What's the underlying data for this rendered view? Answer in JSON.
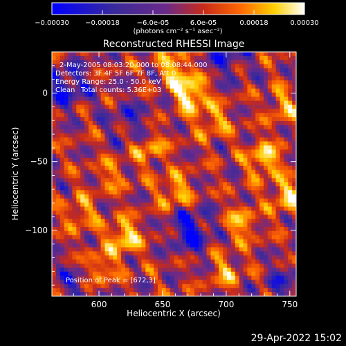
{
  "chart_data": {
    "type": "heatmap",
    "title": "Reconstructed RHESSI Image",
    "xlabel": "Heliocentric X (arcsec)",
    "ylabel": "Heliocentric Y (arcsec)",
    "xlim": [
      563,
      755
    ],
    "ylim": [
      -148,
      30
    ],
    "xticks": [
      {
        "value": 600,
        "label": "600"
      },
      {
        "value": 650,
        "label": "650"
      },
      {
        "value": 700,
        "label": "700"
      },
      {
        "value": 750,
        "label": "750"
      }
    ],
    "yticks": [
      {
        "value": 0,
        "label": "0"
      },
      {
        "value": -50,
        "label": "−50"
      },
      {
        "value": -100,
        "label": "−100"
      }
    ],
    "colorbar": {
      "range": [
        -0.0003,
        0.0003
      ],
      "ticks": [
        {
          "value": -0.0003,
          "label": "−0.00030"
        },
        {
          "value": -0.00018,
          "label": "−0.00018"
        },
        {
          "value": -6e-05,
          "label": "−6.0e-05"
        },
        {
          "value": 6e-05,
          "label": "6.0e-05"
        },
        {
          "value": 0.00018,
          "label": "0.00018"
        },
        {
          "value": 0.0003,
          "label": "0.00030"
        }
      ],
      "unit_label": "(photons cm⁻² s⁻¹ asec⁻²)"
    },
    "color_stops": [
      "#0000ff",
      "#3a2a9a",
      "#6a2a8a",
      "#c82a1a",
      "#ff6a00",
      "#ffd000",
      "#ffffff"
    ],
    "annotations": [
      "2-May-2005 08:03:20.000 to 08:08:44.000",
      "Detectors: 3F 4F 5F 6F 7F 8F, Att 0",
      "Energy Range: 25.0 - 50.0 keV",
      "Clean",
      "Total counts: 5.36E+03",
      "Position of Peak = [672,3]"
    ],
    "peak": {
      "x": 672,
      "y": 3
    },
    "bright_sources": [
      {
        "x": 672,
        "y": 0,
        "strength": 1.0
      },
      {
        "x": 660,
        "y": 18,
        "strength": 0.7
      },
      {
        "x": 730,
        "y": -48,
        "strength": 0.8
      },
      {
        "x": 748,
        "y": -75,
        "strength": 0.75
      },
      {
        "x": 620,
        "y": -105,
        "strength": 0.85
      },
      {
        "x": 600,
        "y": -128,
        "strength": 0.6
      },
      {
        "x": 660,
        "y": -72,
        "strength": 0.65
      },
      {
        "x": 712,
        "y": -95,
        "strength": 0.6
      },
      {
        "x": 640,
        "y": -40,
        "strength": 0.55
      },
      {
        "x": 690,
        "y": -20,
        "strength": 0.55
      },
      {
        "x": 585,
        "y": -88,
        "strength": 0.5
      },
      {
        "x": 700,
        "y": -130,
        "strength": 0.5
      },
      {
        "x": 745,
        "y": -10,
        "strength": 0.5
      },
      {
        "x": 610,
        "y": -60,
        "strength": 0.4
      }
    ],
    "dark_sources": [
      {
        "x": 575,
        "y": 5,
        "strength": 0.8
      },
      {
        "x": 672,
        "y": -100,
        "strength": 0.9
      },
      {
        "x": 700,
        "y": 25,
        "strength": 0.6
      },
      {
        "x": 625,
        "y": -20,
        "strength": 0.5
      },
      {
        "x": 580,
        "y": -140,
        "strength": 0.5
      },
      {
        "x": 745,
        "y": -140,
        "strength": 0.5
      }
    ]
  },
  "footer": {
    "timestamp": "29-Apr-2022 15:02"
  }
}
